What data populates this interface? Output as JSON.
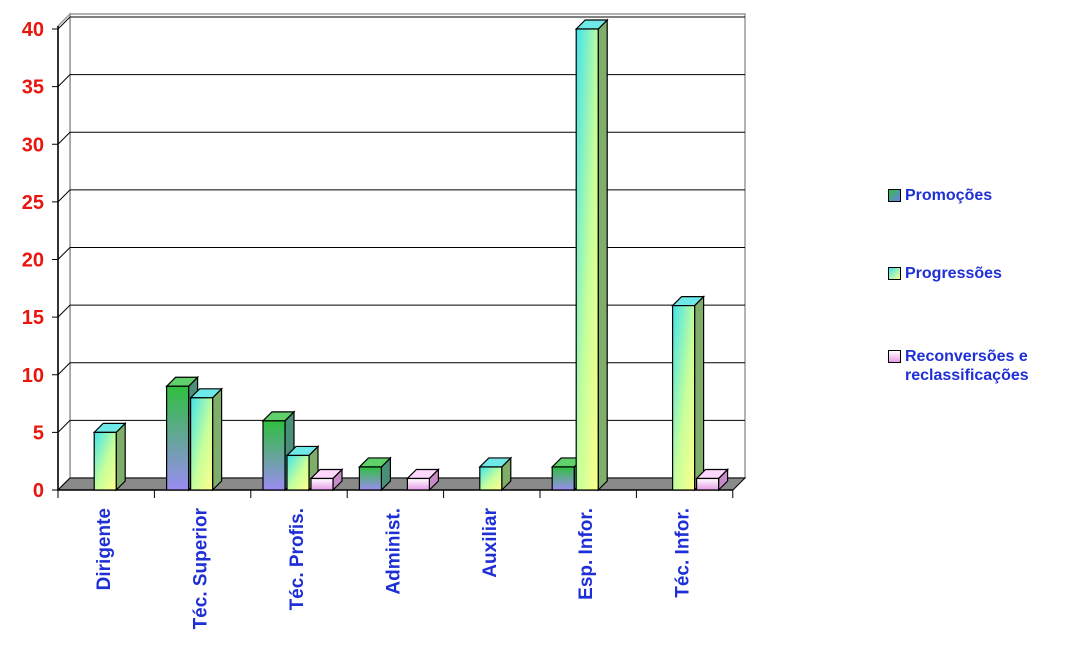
{
  "chart_data": {
    "type": "bar",
    "categories": [
      "Dirigente",
      "Téc. Superior",
      "Téc. Profis.",
      "Administ.",
      "Auxiliar",
      "Esp. Infor.",
      "Téc. Infor."
    ],
    "series": [
      {
        "name": "Promoções",
        "values": [
          0,
          9,
          6,
          2,
          0,
          2,
          0
        ]
      },
      {
        "name": "Progressões",
        "values": [
          5,
          8,
          3,
          0,
          2,
          40,
          16
        ]
      },
      {
        "name": "Reconversões e reclassificações",
        "values": [
          0,
          0,
          1,
          1,
          0,
          0,
          1
        ]
      }
    ],
    "y_ticks": [
      "0",
      "5",
      "10",
      "15",
      "20",
      "25",
      "30",
      "35",
      "40"
    ],
    "ylim": [
      0,
      40
    ],
    "title": "",
    "xlabel": "",
    "ylabel": "",
    "grid": true,
    "legend_position": "right",
    "colors": {
      "tick_y": "#e8160e",
      "tick_x": "#1f2fd6",
      "floor": "#8a8a8a",
      "promocoes": [
        "#3aa84a",
        "#8f8ff0"
      ],
      "progressoes": [
        "#44e0e8",
        "#ffff99"
      ],
      "reconversoes": [
        "#ffffff",
        "#e8a8e8"
      ]
    }
  },
  "legend": {
    "items": [
      {
        "label": "Promoções",
        "swatch": "#3b9aa0"
      },
      {
        "label": "Progressões",
        "swatch": "#e8ff6a"
      },
      {
        "label": "Reconversões e\nreclassificações",
        "swatch": "#f4b8f4"
      }
    ]
  }
}
